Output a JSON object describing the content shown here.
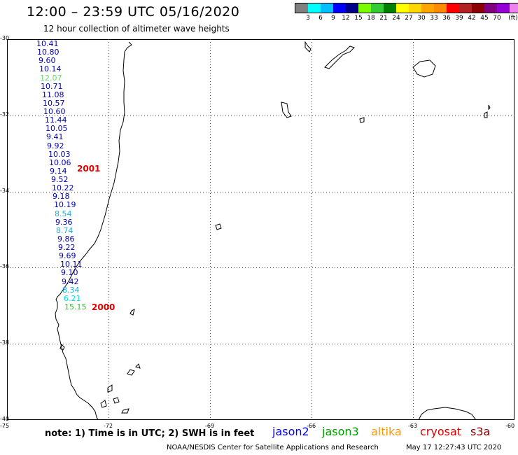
{
  "header": {
    "title": "12:00 – 23:59 UTC 05/16/2020",
    "subtitle": "12 hour collection of altimeter wave heights"
  },
  "legend": {
    "unit": "(ft)",
    "colors": [
      "#808080",
      "#00ffff",
      "#00bfff",
      "#0000ff",
      "#00008b",
      "#7cfc00",
      "#32cd32",
      "#008000",
      "#ffff00",
      "#ffd700",
      "#ffa500",
      "#ff8c00",
      "#ff0000",
      "#b22222",
      "#8b0000",
      "#800080",
      "#9400d3",
      "#ee82ee",
      "#000000"
    ],
    "labels": [
      "3",
      "6",
      "9",
      "12",
      "15",
      "18",
      "21",
      "24",
      "27",
      "30",
      "33",
      "36",
      "39",
      "42",
      "45",
      "70"
    ]
  },
  "axes": {
    "lat_labels": [
      "-30",
      "-32",
      "-34",
      "-36",
      "-38",
      "-40"
    ],
    "lon_labels": [
      "-75",
      "-72",
      "-69",
      "-66",
      "-63",
      "-60"
    ]
  },
  "track": {
    "points": [
      {
        "value": "10.41",
        "color": "#0000b0"
      },
      {
        "value": "10.80",
        "color": "#0000b0"
      },
      {
        "value": "9.60",
        "color": "#0000b0"
      },
      {
        "value": "10.14",
        "color": "#0000b0"
      },
      {
        "value": "12.07",
        "color": "#66dd66"
      },
      {
        "value": "10.71",
        "color": "#0000b0"
      },
      {
        "value": "11.08",
        "color": "#0000b0"
      },
      {
        "value": "10.57",
        "color": "#0000b0"
      },
      {
        "value": "10.60",
        "color": "#0000b0"
      },
      {
        "value": "11.44",
        "color": "#0000b0"
      },
      {
        "value": "10.05",
        "color": "#0000b0"
      },
      {
        "value": "9.41",
        "color": "#0000b0"
      },
      {
        "value": "9.92",
        "color": "#0000b0"
      },
      {
        "value": "10.03",
        "color": "#0000b0"
      },
      {
        "value": "10.06",
        "color": "#0000b0"
      },
      {
        "value": "9.14",
        "color": "#0000b0"
      },
      {
        "value": "9.52",
        "color": "#0000b0"
      },
      {
        "value": "10.22",
        "color": "#0000b0"
      },
      {
        "value": "9.18",
        "color": "#0000b0"
      },
      {
        "value": "10.19",
        "color": "#0000b0"
      },
      {
        "value": "8.54",
        "color": "#1ab0e0"
      },
      {
        "value": "9.36",
        "color": "#0000b0"
      },
      {
        "value": "8.74",
        "color": "#1ab0e0"
      },
      {
        "value": "9.86",
        "color": "#0000b0"
      },
      {
        "value": "9.22",
        "color": "#0000b0"
      },
      {
        "value": "9.69",
        "color": "#0000b0"
      },
      {
        "value": "10.11",
        "color": "#0000b0"
      },
      {
        "value": "9.10",
        "color": "#0000b0"
      },
      {
        "value": "9.42",
        "color": "#0000b0"
      },
      {
        "value": "8.34",
        "color": "#1ab0e0"
      },
      {
        "value": "6.21",
        "color": "#00dddd"
      },
      {
        "value": "15.15",
        "color": "#33bb33"
      }
    ],
    "time_labels": [
      "2001",
      "2000"
    ]
  },
  "footer": {
    "note": "note:  1) Time is in UTC;  2) SWH is in feet",
    "satellites": [
      {
        "name": "jason2",
        "color": "#0000ff"
      },
      {
        "name": "jason3",
        "color": "#00a000"
      },
      {
        "name": "altika",
        "color": "#ff9900"
      },
      {
        "name": "cryosat",
        "color": "#dd0000"
      },
      {
        "name": "s3a",
        "color": "#880000"
      }
    ],
    "credit": "NOAA/NESDIS Center for Satellite Applications and Research",
    "timestamp": "May 17 12:27:43 UTC 2020"
  }
}
